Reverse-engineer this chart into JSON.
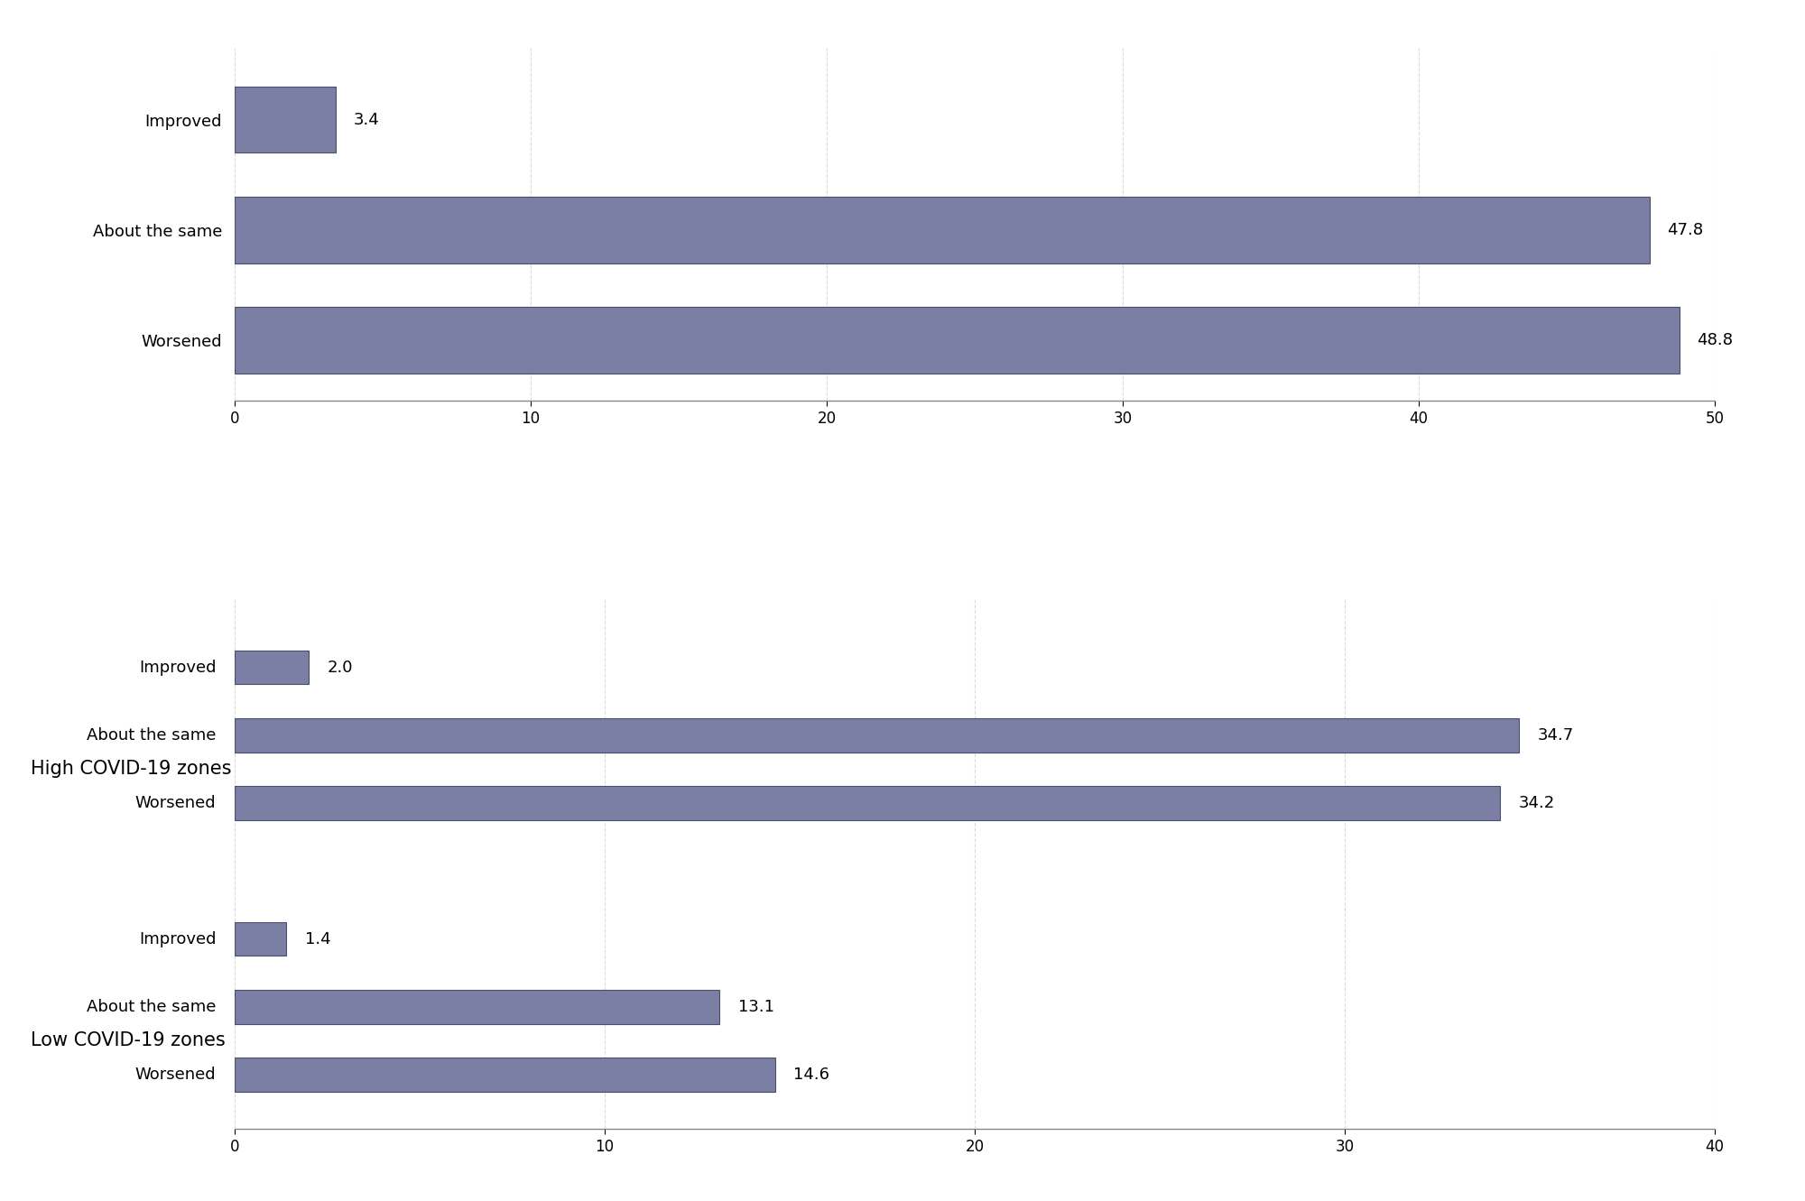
{
  "top_chart": {
    "categories": [
      "Improved",
      "About the same",
      "Worsened"
    ],
    "values": [
      3.4,
      47.8,
      48.8
    ],
    "xlim": [
      0,
      50
    ],
    "xticks": [
      0,
      10,
      20,
      30,
      40,
      50
    ]
  },
  "bottom_chart": {
    "group1_label": "High COVID-19 zones",
    "group2_label": "Low COVID-19 zones",
    "categories": [
      "Improved",
      "About the same",
      "Worsened"
    ],
    "group1_values": [
      2.0,
      34.7,
      34.2
    ],
    "group2_values": [
      1.4,
      13.1,
      14.6
    ],
    "xlim": [
      0,
      40
    ],
    "xticks": [
      0,
      10,
      20,
      30,
      40
    ]
  },
  "bar_color": "#7b7fa3",
  "bar_edge_color": "#4a4e6e",
  "bar_edge_width": 0.8,
  "background_color": "#ffffff",
  "label_fontsize": 13,
  "value_fontsize": 13,
  "tick_fontsize": 12,
  "group_label_fontsize": 15,
  "grid_color": "#cccccc",
  "grid_alpha": 0.7
}
